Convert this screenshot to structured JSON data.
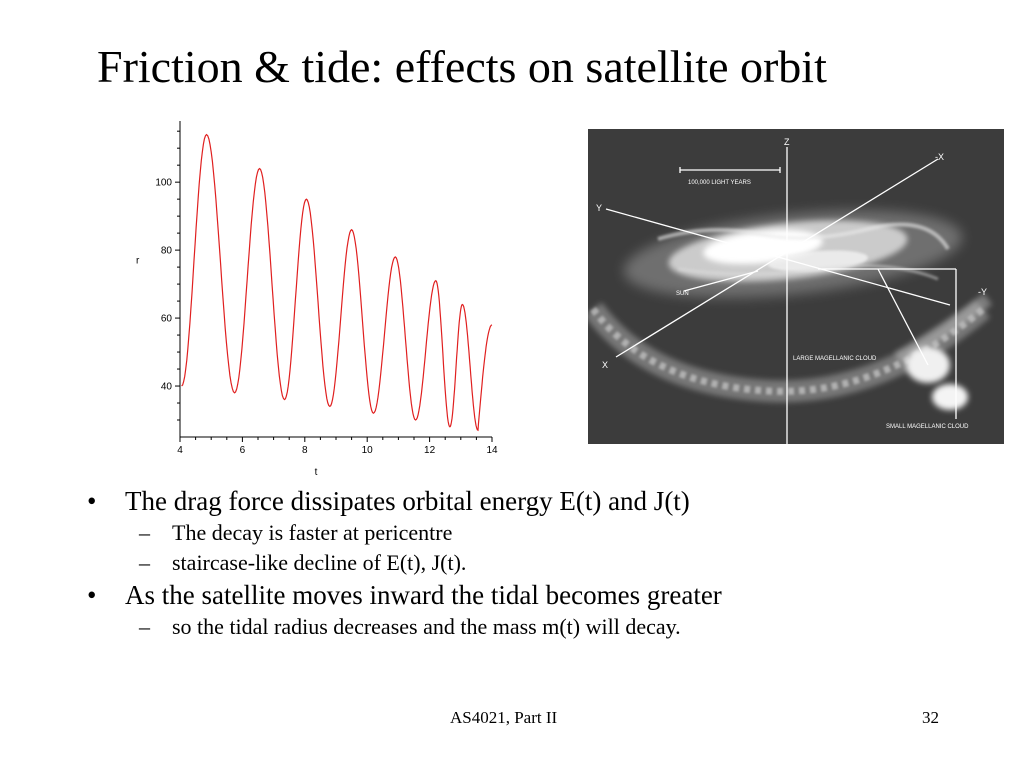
{
  "slide": {
    "title": "Friction & tide: effects on satellite orbit",
    "bullets": [
      {
        "text": "The drag force dissipates orbital energy E(t) and J(t)",
        "subs": [
          "The decay is faster at pericentre",
          "staircase-like decline of E(t), J(t)."
        ]
      },
      {
        "text": "As the satellite moves inward the tidal becomes greater",
        "subs": [
          "so the tidal radius decreases and the mass m(t) will decay."
        ]
      }
    ],
    "bullet_mark": "•",
    "sub_mark": "–",
    "footer": {
      "course": "AS4021, Part II",
      "page": "32"
    }
  },
  "figure": {
    "labels": {
      "z": "Z",
      "neg_x": "-X",
      "y": "Y",
      "neg_y": "-Y",
      "x": "X",
      "sun": "SUN",
      "scale": "100,000  LIGHT YEARS",
      "lmc": "LARGE MAGELLANIC CLOUD",
      "smc": "SMALL MAGELLANIC CLOUD"
    }
  },
  "chart_data": {
    "type": "line",
    "xlabel": "t",
    "ylabel": "r",
    "xlim": [
      4,
      14
    ],
    "ylim": [
      25,
      118
    ],
    "xticks": [
      4,
      6,
      8,
      10,
      12,
      14
    ],
    "yticks": [
      40,
      60,
      80,
      100
    ],
    "series_color": "#e02020",
    "peaks": [
      {
        "t": 4.85,
        "r": 114
      },
      {
        "t": 6.55,
        "r": 104
      },
      {
        "t": 8.05,
        "r": 95
      },
      {
        "t": 9.5,
        "r": 86
      },
      {
        "t": 10.9,
        "r": 78
      },
      {
        "t": 12.2,
        "r": 71
      },
      {
        "t": 13.05,
        "r": 64
      }
    ],
    "troughs": [
      {
        "t": 5.75,
        "r": 38
      },
      {
        "t": 7.35,
        "r": 36
      },
      {
        "t": 8.8,
        "r": 34
      },
      {
        "t": 10.2,
        "r": 32
      },
      {
        "t": 11.55,
        "r": 30
      },
      {
        "t": 12.65,
        "r": 28
      },
      {
        "t": 13.55,
        "r": 27
      }
    ],
    "start": {
      "t": 4.05,
      "r": 40
    },
    "end": {
      "t": 14.0,
      "r": 58
    }
  }
}
